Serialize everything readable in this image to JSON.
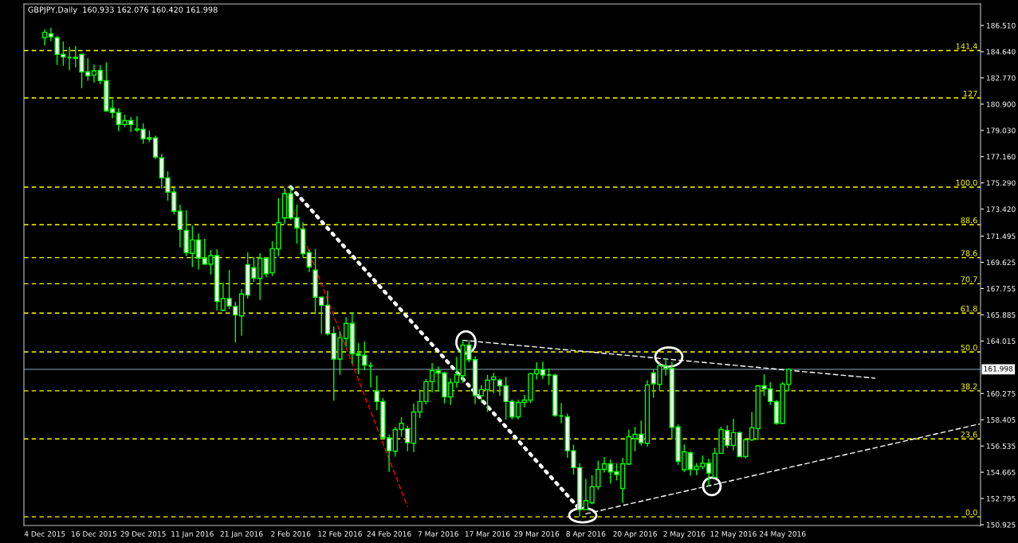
{
  "chart_data": {
    "type": "candlestick",
    "title": "GBPJPY,Daily  160.933 162.076 160.420 161.998",
    "color": "#00ff00",
    "categories": [
      "4 Dec 2015",
      null,
      null,
      null,
      null,
      null,
      null,
      null,
      "16 Dec 2015",
      null,
      null,
      null,
      null,
      null,
      null,
      null,
      "29 Dec 2015",
      null,
      null,
      null,
      null,
      null,
      null,
      null,
      "11 Jan 2016",
      null,
      null,
      null,
      null,
      null,
      null,
      null,
      "21 Jan 2016",
      null,
      null,
      null,
      null,
      null,
      null,
      null,
      "2 Feb 2016",
      null,
      null,
      null,
      null,
      null,
      null,
      null,
      "12 Feb 2016",
      null,
      null,
      null,
      null,
      null,
      null,
      null,
      "24 Feb 2016",
      null,
      null,
      null,
      null,
      null,
      null,
      null,
      "7 Mar 2016",
      null,
      null,
      null,
      null,
      null,
      null,
      null,
      "17 Mar 2016",
      null,
      null,
      null,
      null,
      null,
      null,
      null,
      "29 Mar 2016",
      null,
      null,
      null,
      null,
      null,
      null,
      null,
      "8 Apr 2016",
      null,
      null,
      null,
      null,
      null,
      null,
      null,
      "20 Apr 2016",
      null,
      null,
      null,
      null,
      null,
      null,
      null,
      "2 May 2016",
      null,
      null,
      null,
      null,
      null,
      null,
      null,
      "12 May 2016",
      null,
      null,
      null,
      null,
      null,
      null,
      null,
      "24 May 2016",
      null,
      null,
      null,
      null,
      null,
      null,
      null,
      null,
      null,
      null,
      null,
      null,
      null,
      null,
      null,
      null,
      null,
      null,
      null,
      null,
      null,
      null,
      null,
      null,
      null,
      null,
      null,
      null,
      null,
      null,
      null,
      null
    ],
    "ohlc": [
      [
        185.64,
        186.24,
        185.07,
        186.02
      ],
      [
        185.92,
        186.34,
        185.39,
        185.7
      ],
      [
        185.64,
        185.77,
        183.69,
        184.45
      ],
      [
        184.45,
        185.37,
        183.63,
        184.26
      ],
      [
        184.22,
        184.98,
        183.31,
        184.22
      ],
      [
        184.24,
        185.03,
        183.52,
        184.16
      ],
      [
        184.45,
        184.5,
        182.04,
        183.2
      ],
      [
        183.2,
        184.18,
        182.56,
        182.92
      ],
      [
        182.97,
        183.73,
        182.44,
        183.27
      ],
      [
        183.31,
        183.67,
        182.33,
        182.57
      ],
      [
        182.57,
        183.88,
        180.34,
        180.42
      ],
      [
        180.59,
        181.23,
        179.89,
        180.3
      ],
      [
        180.3,
        180.61,
        178.98,
        179.45
      ],
      [
        179.45,
        180.15,
        179.26,
        179.73
      ],
      [
        179.73,
        179.98,
        178.92,
        179.45
      ],
      [
        179.13,
        180.04,
        178.92,
        179.05
      ],
      [
        179.11,
        179.53,
        178.07,
        178.43
      ],
      [
        178.51,
        179.02,
        178.19,
        178.41
      ],
      [
        178.49,
        178.66,
        176.97,
        177.13
      ],
      [
        177.07,
        177.35,
        174.89,
        175.65
      ],
      [
        175.65,
        176.12,
        174.02,
        174.63
      ],
      [
        174.63,
        174.93,
        173.04,
        173.27
      ],
      [
        173.27,
        173.72,
        170.69,
        171.96
      ],
      [
        171.9,
        173.34,
        170.07,
        170.32
      ],
      [
        170.26,
        172.24,
        169.29,
        171.22
      ],
      [
        171.22,
        171.68,
        169.12,
        169.92
      ],
      [
        169.92,
        171.3,
        169.45,
        169.5
      ],
      [
        169.5,
        170.51,
        168.75,
        170.11
      ],
      [
        170.11,
        170.56,
        166.19,
        166.84
      ],
      [
        166.21,
        168.18,
        166.15,
        167.04
      ],
      [
        167.04,
        169.09,
        166.29,
        166.51
      ],
      [
        166.48,
        166.8,
        163.92,
        165.87
      ],
      [
        165.81,
        167.71,
        164.39,
        167.37
      ],
      [
        169.46,
        170.33,
        167.04,
        167.29
      ],
      [
        169.24,
        170.01,
        168.23,
        168.5
      ],
      [
        168.48,
        170.28,
        166.95,
        169.92
      ],
      [
        169.92,
        169.99,
        168.56,
        168.82
      ],
      [
        168.88,
        171.13,
        168.65,
        170.6
      ],
      [
        170.58,
        174.19,
        170.07,
        172.47
      ],
      [
        172.79,
        174.89,
        172.38,
        174.52
      ],
      [
        174.52,
        174.99,
        172.68,
        172.79
      ],
      [
        172.81,
        173.74,
        170.96,
        172.08
      ],
      [
        172.0,
        172.47,
        169.98,
        170.24
      ],
      [
        170.32,
        170.54,
        168.93,
        169.3
      ],
      [
        169.07,
        170.6,
        165.93,
        167.14
      ],
      [
        167.14,
        167.18,
        164.53,
        166.57
      ],
      [
        166.57,
        167.59,
        164.41,
        164.53
      ],
      [
        164.57,
        165.06,
        159.76,
        162.73
      ],
      [
        162.73,
        164.72,
        161.61,
        164.24
      ],
      [
        164.19,
        165.72,
        163.62,
        165.27
      ],
      [
        165.27,
        166.06,
        162.41,
        163.11
      ],
      [
        163.11,
        163.87,
        161.65,
        163.0
      ],
      [
        163.0,
        163.98,
        161.94,
        162.3
      ],
      [
        162.25,
        162.5,
        160.7,
        162.25
      ],
      [
        160.46,
        161.55,
        159.09,
        159.7
      ],
      [
        159.7,
        159.94,
        157.01,
        157.14
      ],
      [
        157.11,
        157.35,
        154.69,
        156.2
      ],
      [
        156.16,
        157.9,
        155.78,
        157.71
      ],
      [
        157.71,
        158.58,
        157.2,
        158.15
      ],
      [
        157.77,
        157.96,
        156.16,
        156.77
      ],
      [
        156.73,
        159.57,
        156.1,
        158.96
      ],
      [
        158.96,
        160.55,
        158.53,
        159.7
      ],
      [
        159.7,
        161.31,
        159.51,
        161.12
      ],
      [
        161.12,
        162.44,
        160.36,
        161.91
      ],
      [
        161.91,
        162.21,
        160.42,
        161.74
      ],
      [
        161.74,
        161.84,
        159.57,
        160.04
      ],
      [
        160.04,
        161.36,
        159.47,
        161.06
      ],
      [
        161.08,
        162.88,
        160.7,
        161.61
      ],
      [
        161.55,
        164.07,
        161.04,
        163.73
      ],
      [
        163.73,
        164.07,
        162.5,
        162.69
      ],
      [
        162.69,
        162.93,
        159.53,
        160.13
      ],
      [
        160.13,
        160.89,
        159.6,
        160.55
      ],
      [
        160.55,
        161.61,
        158.96,
        161.23
      ],
      [
        161.27,
        161.74,
        160.32,
        161.46
      ],
      [
        161.23,
        161.36,
        160.1,
        160.83
      ],
      [
        160.83,
        161.46,
        158.43,
        159.7
      ],
      [
        159.7,
        159.85,
        158.43,
        158.62
      ],
      [
        158.62,
        159.85,
        158.43,
        159.64
      ],
      [
        159.64,
        160.17,
        159.28,
        159.81
      ],
      [
        159.81,
        161.74,
        159.6,
        161.69
      ],
      [
        161.69,
        162.5,
        161.27,
        161.97
      ],
      [
        161.97,
        162.55,
        161.31,
        161.59
      ],
      [
        161.59,
        162.06,
        160.89,
        161.59
      ],
      [
        161.59,
        161.69,
        158.62,
        158.71
      ],
      [
        158.68,
        159.6,
        158.15,
        158.68
      ],
      [
        158.62,
        158.85,
        155.69,
        156.2
      ],
      [
        156.2,
        156.63,
        154.5,
        154.99
      ],
      [
        154.99,
        155.31,
        151.5,
        152.0
      ],
      [
        152.0,
        154.19,
        151.96,
        152.64
      ],
      [
        152.49,
        154.46,
        152.38,
        153.63
      ],
      [
        153.63,
        155.5,
        153.42,
        154.87
      ],
      [
        154.87,
        155.75,
        154.65,
        155.27
      ],
      [
        155.27,
        155.56,
        153.85,
        154.69
      ],
      [
        154.7,
        155.29,
        154.08,
        154.5
      ],
      [
        153.51,
        155.69,
        152.47,
        155.27
      ],
      [
        155.25,
        157.71,
        155.18,
        157.2
      ],
      [
        157.07,
        157.9,
        156.16,
        157.37
      ],
      [
        157.37,
        158.34,
        156.58,
        156.77
      ],
      [
        156.73,
        161.23,
        156.5,
        160.89
      ],
      [
        161.74,
        161.99,
        159.98,
        160.97
      ],
      [
        160.93,
        162.5,
        160.47,
        162.25
      ],
      [
        162.25,
        162.78,
        161.55,
        162.06
      ],
      [
        162.06,
        162.55,
        157.01,
        157.86
      ],
      [
        157.9,
        158.09,
        155.18,
        155.44
      ],
      [
        154.84,
        156.65,
        154.69,
        156.12
      ],
      [
        156.05,
        156.16,
        154.42,
        154.87
      ],
      [
        154.87,
        155.31,
        154.46,
        155.06
      ],
      [
        155.06,
        155.86,
        154.87,
        155.31
      ],
      [
        155.31,
        155.63,
        153.66,
        154.61
      ],
      [
        154.31,
        156.41,
        154.27,
        156.01
      ],
      [
        156.01,
        157.9,
        155.97,
        157.71
      ],
      [
        157.64,
        158.01,
        156.39,
        156.58
      ],
      [
        156.58,
        158.47,
        156.22,
        157.49
      ],
      [
        157.49,
        157.58,
        155.75,
        155.78
      ],
      [
        155.78,
        157.07,
        155.67,
        156.98
      ],
      [
        156.98,
        158.96,
        156.88,
        157.83
      ],
      [
        157.77,
        160.85,
        156.96,
        160.83
      ],
      [
        160.83,
        161.65,
        160.1,
        160.61
      ],
      [
        160.61,
        161.08,
        159.45,
        159.7
      ],
      [
        159.7,
        159.81,
        158.05,
        158.15
      ],
      [
        158.15,
        161.08,
        158.09,
        160.95
      ],
      [
        160.933,
        162.076,
        160.42,
        161.998
      ],
      null,
      null,
      null,
      null,
      null,
      null,
      null,
      null,
      null,
      null,
      null,
      null,
      null,
      null,
      null,
      null,
      null,
      null,
      null,
      null,
      null,
      null,
      null,
      null,
      null,
      null,
      null,
      null,
      null,
      null,
      null
    ],
    "series": [
      {
        "type": "line",
        "color": "#ffffff",
        "line_style": "dotted",
        "values": [
          null,
          null,
          null,
          null,
          null,
          null,
          null,
          null,
          null,
          null,
          null,
          null,
          null,
          null,
          null,
          null,
          null,
          null,
          null,
          null,
          null,
          null,
          null,
          null,
          null,
          null,
          null,
          null,
          null,
          null,
          null,
          null,
          null,
          null,
          null,
          null,
          null,
          null,
          null,
          null,
          174.99,
          null,
          null,
          null,
          null,
          null,
          null,
          null,
          null,
          null,
          null,
          null,
          null,
          null,
          null,
          null,
          null,
          null,
          null,
          null,
          null,
          null,
          null,
          null,
          null,
          null,
          null,
          null,
          null,
          null,
          null,
          null,
          null,
          null,
          null,
          null,
          null,
          null,
          null,
          null,
          null,
          null,
          null,
          null,
          null,
          null,
          null,
          152.04,
          null,
          null,
          null,
          null,
          null,
          null,
          null,
          null,
          null,
          null,
          null,
          null,
          null,
          null,
          null,
          null,
          null,
          null,
          null,
          null,
          null,
          null,
          null,
          null,
          null,
          null,
          null,
          null,
          null,
          null,
          null,
          null,
          null,
          null,
          null,
          null,
          null,
          null,
          null,
          null,
          null,
          null,
          null,
          null,
          null,
          null,
          null,
          null,
          null,
          null,
          null,
          null,
          null,
          null,
          null,
          null,
          null,
          null,
          null,
          null,
          null,
          null,
          null,
          null,
          null
        ]
      },
      {
        "type": "line",
        "color": "#ff0000",
        "line_style": "dashed",
        "values": [
          null,
          null,
          null,
          null,
          null,
          null,
          null,
          null,
          null,
          null,
          null,
          null,
          null,
          null,
          null,
          null,
          null,
          null,
          null,
          null,
          null,
          null,
          null,
          null,
          null,
          null,
          null,
          null,
          null,
          null,
          null,
          null,
          null,
          null,
          null,
          null,
          null,
          null,
          null,
          174.89,
          null,
          null,
          null,
          null,
          null,
          null,
          null,
          null,
          null,
          null,
          null,
          null,
          null,
          null,
          null,
          null,
          null,
          null,
          null,
          152.2,
          null,
          null,
          null,
          null,
          null,
          null,
          null,
          null,
          null,
          null,
          null,
          null,
          null,
          null,
          null,
          null,
          null,
          null,
          null,
          null,
          null,
          null,
          null,
          null,
          null,
          null,
          null,
          null,
          null,
          null,
          null,
          null,
          null,
          null,
          null,
          null,
          null,
          null,
          null,
          null,
          null,
          null,
          null,
          null,
          null,
          null,
          null,
          null,
          null,
          null,
          null,
          null,
          null,
          null,
          null,
          null,
          null,
          null,
          null,
          null,
          null,
          null,
          null,
          null,
          null,
          null,
          null,
          null,
          null,
          null,
          null,
          null,
          null,
          null,
          null,
          null,
          null,
          null,
          null,
          null,
          null,
          null,
          null,
          null,
          null,
          null,
          null,
          null,
          null,
          null,
          null,
          null,
          null
        ]
      },
      {
        "type": "line",
        "color": "#ffffff",
        "line_style": "dashed",
        "values": [
          null,
          null,
          null,
          null,
          null,
          null,
          null,
          null,
          null,
          null,
          null,
          null,
          null,
          null,
          null,
          null,
          null,
          null,
          null,
          null,
          null,
          null,
          null,
          null,
          null,
          null,
          null,
          null,
          null,
          null,
          null,
          null,
          null,
          null,
          null,
          null,
          null,
          null,
          null,
          null,
          null,
          null,
          null,
          null,
          null,
          null,
          null,
          null,
          null,
          null,
          null,
          null,
          null,
          null,
          null,
          null,
          null,
          null,
          null,
          null,
          null,
          null,
          null,
          null,
          null,
          null,
          null,
          null,
          164.07,
          null,
          null,
          null,
          null,
          null,
          null,
          null,
          null,
          null,
          null,
          null,
          null,
          null,
          null,
          null,
          null,
          null,
          null,
          null,
          null,
          null,
          null,
          null,
          null,
          null,
          null,
          null,
          null,
          null,
          null,
          null,
          null,
          null,
          null,
          null,
          null,
          null,
          null,
          null,
          null,
          null,
          null,
          null,
          null,
          null,
          null,
          null,
          null,
          null,
          null,
          null,
          null,
          null,
          null,
          null,
          null,
          null,
          null,
          null,
          null,
          null,
          null,
          null,
          null,
          null,
          null,
          161.37,
          null,
          null,
          null,
          null,
          null,
          null,
          null,
          null,
          null,
          null,
          null,
          null,
          null,
          null,
          null,
          null,
          null
        ]
      },
      {
        "type": "line",
        "color": "#ffffff",
        "line_style": "dashed",
        "values": [
          null,
          null,
          null,
          null,
          null,
          null,
          null,
          null,
          null,
          null,
          null,
          null,
          null,
          null,
          null,
          null,
          null,
          null,
          null,
          null,
          null,
          null,
          null,
          null,
          null,
          null,
          null,
          null,
          null,
          null,
          null,
          null,
          null,
          null,
          null,
          null,
          null,
          null,
          null,
          null,
          null,
          null,
          null,
          null,
          null,
          null,
          null,
          null,
          null,
          null,
          null,
          null,
          null,
          null,
          null,
          null,
          null,
          null,
          null,
          null,
          null,
          null,
          null,
          null,
          null,
          null,
          null,
          null,
          null,
          null,
          null,
          null,
          null,
          null,
          null,
          null,
          null,
          null,
          null,
          null,
          null,
          null,
          null,
          null,
          null,
          null,
          null,
          null,
          151.7,
          null,
          null,
          null,
          null,
          null,
          null,
          null,
          null,
          null,
          null,
          null,
          null,
          null,
          null,
          null,
          null,
          null,
          null,
          null,
          null,
          null,
          null,
          null,
          null,
          null,
          null,
          null,
          null,
          null,
          null,
          null,
          null,
          null,
          null,
          null,
          null,
          null,
          null,
          null,
          null,
          null,
          null,
          null,
          null,
          null,
          null,
          null,
          null,
          null,
          null,
          null,
          null,
          null,
          null,
          null,
          null,
          null,
          null,
          null,
          null,
          null,
          null,
          null,
          158.1
        ]
      }
    ],
    "annotations": [
      {
        "text": "141.4",
        "y": 184.72
      },
      {
        "text": "127",
        "y": 181.34
      },
      {
        "text": "100.0",
        "y": 174.99
      },
      {
        "text": "88.6",
        "y": 172.31
      },
      {
        "text": "78.6",
        "y": 169.96
      },
      {
        "text": "70.7",
        "y": 168.1
      },
      {
        "text": "61.8",
        "y": 166.01
      },
      {
        "text": "50.0",
        "y": 163.24
      },
      {
        "text": "38.2",
        "y": 160.47
      },
      {
        "text": "23.6",
        "y": 157.04
      },
      {
        "text": "0.0",
        "y": 151.49
      }
    ],
    "ylim": [
      150.87,
      188.04
    ],
    "yticks": [
      {
        "value": 150.925,
        "label": "150.925"
      },
      {
        "value": 152.795,
        "label": "152.795"
      },
      {
        "value": 154.665,
        "label": "154.665"
      },
      {
        "value": 156.535,
        "label": "156.535"
      },
      {
        "value": 158.405,
        "label": "158.405"
      },
      {
        "value": 160.275,
        "label": "160.275"
      },
      {
        "value": 164.015,
        "label": "164.015"
      },
      {
        "value": 165.885,
        "label": "165.885"
      },
      {
        "value": 167.755,
        "label": "167.755"
      },
      {
        "value": 169.625,
        "label": "169.625"
      },
      {
        "value": 171.495,
        "label": "171.495"
      },
      {
        "value": 173.42,
        "label": "173.420"
      },
      {
        "value": 175.29,
        "label": "175.290"
      },
      {
        "value": 177.16,
        "label": "177.160"
      },
      {
        "value": 179.03,
        "label": "179.030"
      },
      {
        "value": 180.9,
        "label": "180.900"
      },
      {
        "value": 182.77,
        "label": "182.770"
      },
      {
        "value": 184.64,
        "label": "184.640"
      },
      {
        "value": 186.51,
        "label": "186.510"
      }
    ],
    "ref_lines": [
      {
        "axis": "y",
        "value": 184.72,
        "color": "#ffff00",
        "line_style": "dashed"
      },
      {
        "axis": "y",
        "value": 181.34,
        "color": "#ffff00",
        "line_style": "dashed"
      },
      {
        "axis": "y",
        "value": 174.99,
        "color": "#ffff00",
        "line_style": "dashed"
      },
      {
        "axis": "y",
        "value": 172.31,
        "color": "#ffff00",
        "line_style": "dashed"
      },
      {
        "axis": "y",
        "value": 169.96,
        "color": "#ffff00",
        "line_style": "dashed"
      },
      {
        "axis": "y",
        "value": 168.1,
        "color": "#ffff00",
        "line_style": "dashed"
      },
      {
        "axis": "y",
        "value": 166.01,
        "color": "#ffff00",
        "line_style": "dashed"
      },
      {
        "axis": "y",
        "value": 163.24,
        "color": "#ffff00",
        "line_style": "dashed"
      },
      {
        "axis": "y",
        "value": 160.47,
        "color": "#ffff00",
        "line_style": "dashed"
      },
      {
        "axis": "y",
        "value": 157.04,
        "color": "#ffff00",
        "line_style": "dashed"
      },
      {
        "axis": "y",
        "value": 151.49,
        "color": "#ffff00",
        "line_style": "dashed"
      },
      {
        "axis": "y",
        "value": 161.998,
        "label": "161.998",
        "color": "#778899",
        "line_style": "solid"
      }
    ],
    "grid": false,
    "legend": false
  }
}
